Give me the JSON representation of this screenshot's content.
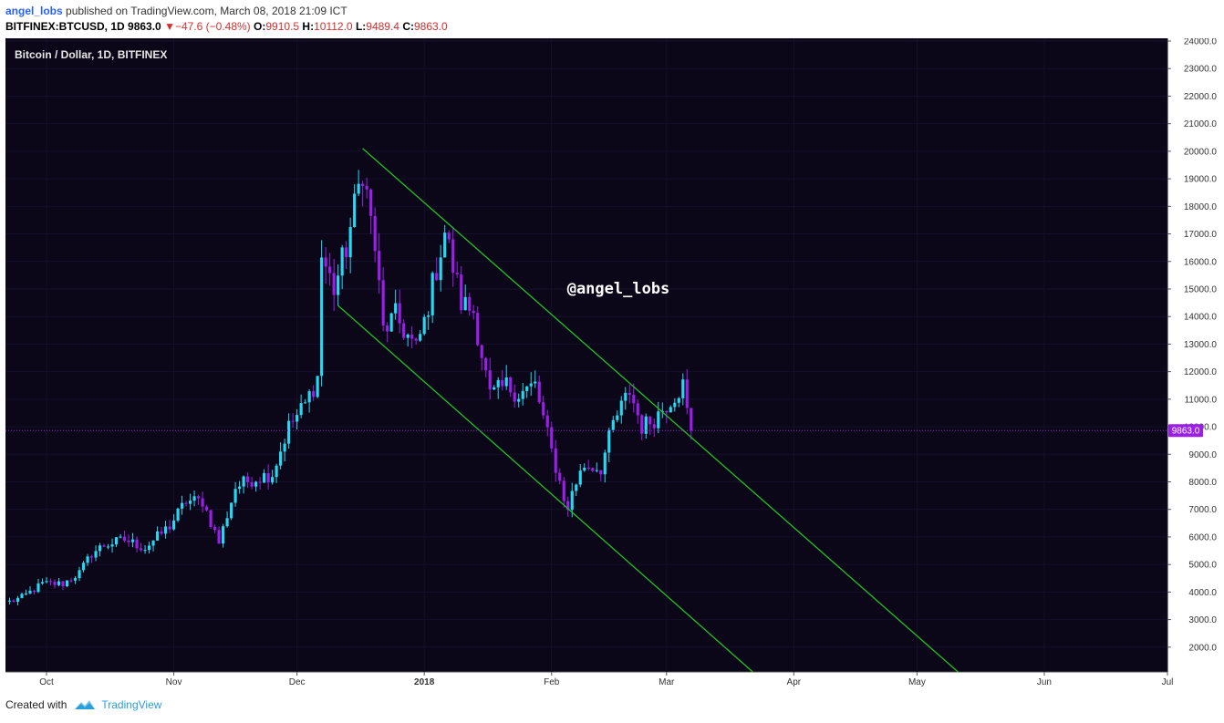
{
  "header": {
    "author": "angel_lobs",
    "published": "published on TradingView.com, March 08, 2018 21:09 ICT",
    "symbol": "BITFINEX:BTCUSD, 1D",
    "last": "9863.0",
    "change": "−47.6 (−0.48%)",
    "o_label": "O:",
    "o": "9910.5",
    "h_label": "H:",
    "h": "10112.0",
    "l_label": "L:",
    "l": "9489.4",
    "c_label": "C:",
    "c": "9863.0"
  },
  "footer": {
    "created": "Created with",
    "brand": "TradingView",
    "logo_icon": "tradingview-logo-icon"
  },
  "colors": {
    "background": "#0b0718",
    "up": "#26d9f2",
    "down": "#9b1fe8",
    "channel": "#22c022",
    "price_line": "#9b1fe8"
  },
  "chart_data": {
    "type": "candlestick",
    "title": "Bitcoin / Dollar, 1D, BITFINEX",
    "watermark": "@angel_lobs",
    "last_price_label": "9863.0",
    "last_price": 9863,
    "y_ticks": [
      "2000.0",
      "3000.0",
      "4000.0",
      "5000.0",
      "6000.0",
      "7000.0",
      "8000.0",
      "9000.0",
      "10000.0",
      "11000.0",
      "12000.0",
      "13000.0",
      "14000.0",
      "15000.0",
      "16000.0",
      "17000.0",
      "18000.0",
      "19000.0",
      "20000.0",
      "21000.0",
      "22000.0",
      "23000.0",
      "24000.0"
    ],
    "x_ticks": [
      {
        "label": "Oct",
        "date": "2017-10-01"
      },
      {
        "label": "Nov",
        "date": "2017-11-01"
      },
      {
        "label": "Dec",
        "date": "2017-12-01"
      },
      {
        "label": "2018",
        "date": "2018-01-01"
      },
      {
        "label": "Feb",
        "date": "2018-02-01"
      },
      {
        "label": "Mar",
        "date": "2018-03-01"
      },
      {
        "label": "Apr",
        "date": "2018-04-01"
      },
      {
        "label": "May",
        "date": "2018-05-01"
      },
      {
        "label": "Jun",
        "date": "2018-06-01"
      },
      {
        "label": "Jul",
        "date": "2018-07-01"
      }
    ],
    "x_range": [
      "2017-09-21",
      "2018-07-01"
    ],
    "y_range": [
      1100,
      24100
    ],
    "channel": [
      {
        "from": [
          "2017-12-17",
          20100
        ],
        "to": [
          "2018-05-11",
          1100
        ]
      },
      {
        "from": [
          "2017-12-11",
          14400
        ],
        "to": [
          "2018-03-22",
          1100
        ]
      }
    ],
    "ohlc_anchors": [
      [
        "2017-09-22",
        3650
      ],
      [
        "2017-09-25",
        3800
      ],
      [
        "2017-09-30",
        4300
      ],
      [
        "2017-10-05",
        4300
      ],
      [
        "2017-10-09",
        4700
      ],
      [
        "2017-10-12",
        5400
      ],
      [
        "2017-10-15",
        5700
      ],
      [
        "2017-10-20",
        5900
      ],
      [
        "2017-10-25",
        5600
      ],
      [
        "2017-10-31",
        6400
      ],
      [
        "2017-11-04",
        7300
      ],
      [
        "2017-11-08",
        7300
      ],
      [
        "2017-11-12",
        5800
      ],
      [
        "2017-11-16",
        7800
      ],
      [
        "2017-11-20",
        8100
      ],
      [
        "2017-11-25",
        8300
      ],
      [
        "2017-11-29",
        10000
      ],
      [
        "2017-12-03",
        10800
      ],
      [
        "2017-12-06",
        11800
      ],
      [
        "2017-12-07",
        16200
      ],
      [
        "2017-12-10",
        15000
      ],
      [
        "2017-12-13",
        16500
      ],
      [
        "2017-12-17",
        19400
      ],
      [
        "2017-12-20",
        16500
      ],
      [
        "2017-12-22",
        13500
      ],
      [
        "2017-12-25",
        14000
      ],
      [
        "2017-12-30",
        12800
      ],
      [
        "2018-01-01",
        13800
      ],
      [
        "2018-01-06",
        17100
      ],
      [
        "2018-01-10",
        14500
      ],
      [
        "2018-01-13",
        14200
      ],
      [
        "2018-01-17",
        11100
      ],
      [
        "2018-01-21",
        11500
      ],
      [
        "2018-01-24",
        11200
      ],
      [
        "2018-01-28",
        11500
      ],
      [
        "2018-02-01",
        9100
      ],
      [
        "2018-02-05",
        6900
      ],
      [
        "2018-02-06",
        7700
      ],
      [
        "2018-02-09",
        8600
      ],
      [
        "2018-02-13",
        8500
      ],
      [
        "2018-02-16",
        10100
      ],
      [
        "2018-02-20",
        11300
      ],
      [
        "2018-02-23",
        10000
      ],
      [
        "2018-02-26",
        10300
      ],
      [
        "2018-03-02",
        11000
      ],
      [
        "2018-03-05",
        11500
      ],
      [
        "2018-03-07",
        9863
      ]
    ]
  }
}
